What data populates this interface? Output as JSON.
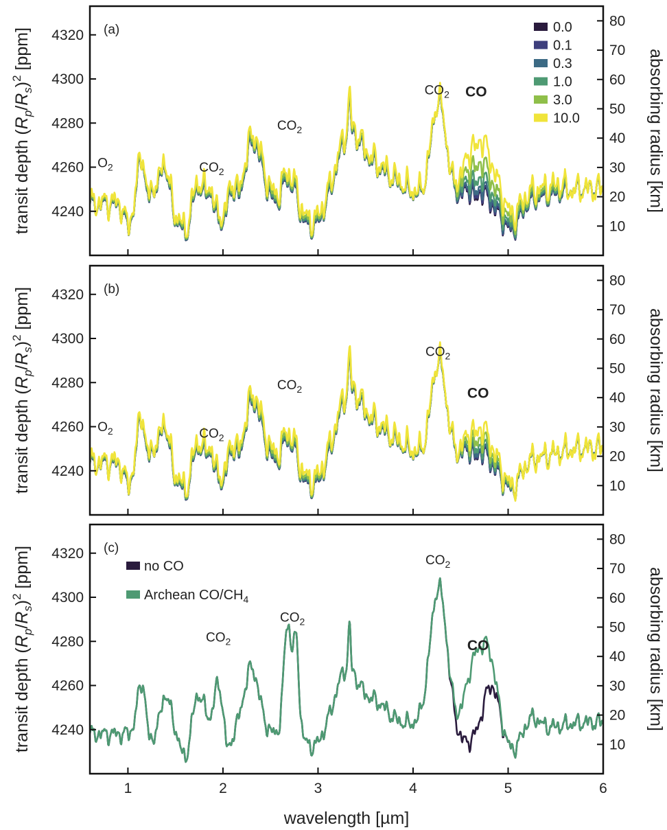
{
  "chart_data": [
    {
      "type": "line",
      "panel_label": "(a)",
      "xlim": [
        0.6,
        6.0
      ],
      "ylim": [
        4220,
        4333
      ],
      "yticks": [
        4240,
        4260,
        4280,
        4300,
        4320
      ],
      "y2ticks": [
        10,
        20,
        30,
        40,
        50,
        60,
        70,
        80
      ],
      "y2label": "absorbing radius [km]",
      "legend": {
        "placement": "top-right"
      },
      "co_peak": 0.4,
      "annotations": [
        {
          "base": "O",
          "sub": "2",
          "x": 0.68,
          "y": 4260
        },
        {
          "base": "CO",
          "sub": "2",
          "x": 1.75,
          "y": 4258
        },
        {
          "base": "CO",
          "sub": "2",
          "x": 2.57,
          "y": 4277
        },
        {
          "base": "CO",
          "sub": "2",
          "x": 4.12,
          "y": 4293
        },
        {
          "base": "CO",
          "sub": "",
          "x": 4.55,
          "y": 4292,
          "bold": true,
          "color": "#4e9a73"
        }
      ],
      "series": [
        {
          "name": "0.0",
          "color": "#2a1b3d",
          "co_scale": 0.0
        },
        {
          "name": "0.1",
          "color": "#3e3f7d",
          "co_scale": 0.1
        },
        {
          "name": "0.3",
          "color": "#3c6a84",
          "co_scale": 0.3
        },
        {
          "name": "1.0",
          "color": "#4e9a73",
          "co_scale": 1.0
        },
        {
          "name": "3.0",
          "color": "#8fbf4a",
          "co_scale": 3.0
        },
        {
          "name": "10.0",
          "color": "#f0e43a",
          "co_scale": 10.0
        }
      ]
    },
    {
      "type": "line",
      "panel_label": "(b)",
      "xlim": [
        0.6,
        6.0
      ],
      "ylim": [
        4220,
        4333
      ],
      "yticks": [
        4240,
        4260,
        4280,
        4300,
        4320
      ],
      "y2ticks": [
        10,
        20,
        30,
        40,
        50,
        60,
        70,
        80
      ],
      "y2label": "absorbing radius [km]",
      "co_peak": 0.22,
      "annotations": [
        {
          "base": "O",
          "sub": "2",
          "x": 0.68,
          "y": 4258
        },
        {
          "base": "CO",
          "sub": "2",
          "x": 1.75,
          "y": 4255
        },
        {
          "base": "CO",
          "sub": "2",
          "x": 2.57,
          "y": 4277
        },
        {
          "base": "CO",
          "sub": "2",
          "x": 4.13,
          "y": 4292
        },
        {
          "base": "CO",
          "sub": "",
          "x": 4.57,
          "y": 4273,
          "bold": true,
          "color": "#4e9a73"
        }
      ],
      "series": [
        {
          "name": "0.0",
          "color": "#2a1b3d",
          "co_scale": 0.0
        },
        {
          "name": "0.1",
          "color": "#3e3f7d",
          "co_scale": 0.1
        },
        {
          "name": "0.3",
          "color": "#3c6a84",
          "co_scale": 0.3
        },
        {
          "name": "1.0",
          "color": "#4e9a73",
          "co_scale": 1.0
        },
        {
          "name": "3.0",
          "color": "#8fbf4a",
          "co_scale": 3.0
        },
        {
          "name": "10.0",
          "color": "#f0e43a",
          "co_scale": 10.0
        }
      ]
    },
    {
      "type": "line",
      "panel_label": "(c)",
      "xlim": [
        0.6,
        6.0
      ],
      "xticks": [
        1,
        2,
        3,
        4,
        5,
        6
      ],
      "xlabel": "wavelength [µm]",
      "ylim": [
        4220,
        4333
      ],
      "yticks": [
        4240,
        4260,
        4280,
        4300,
        4320
      ],
      "y2ticks": [
        10,
        20,
        30,
        40,
        50,
        60,
        70,
        80
      ],
      "y2label": "absorbing radius [km]",
      "legend": {
        "placement": "top-left"
      },
      "annotations": [
        {
          "base": "CO",
          "sub": "2",
          "x": 1.82,
          "y": 4280
        },
        {
          "base": "CO",
          "sub": "2",
          "x": 2.6,
          "y": 4289
        },
        {
          "base": "CO",
          "sub": "2",
          "x": 4.13,
          "y": 4315
        },
        {
          "base": "CO",
          "sub": "",
          "x": 4.57,
          "y": 4276,
          "bold": true,
          "color": "#4e9a73"
        }
      ],
      "series": [
        {
          "name": "no CO",
          "color": "#2a1b3d"
        },
        {
          "name": "Archean CO/CH",
          "name_sub": "4",
          "color": "#4e9a73"
        }
      ]
    }
  ],
  "ylabel": {
    "pre": "transit depth (",
    "r1": "R",
    "s1": "p",
    "mid": "/",
    "r2": "R",
    "s2": "s",
    "post": ")",
    "sup": "2",
    "tail": " [ppm]"
  }
}
